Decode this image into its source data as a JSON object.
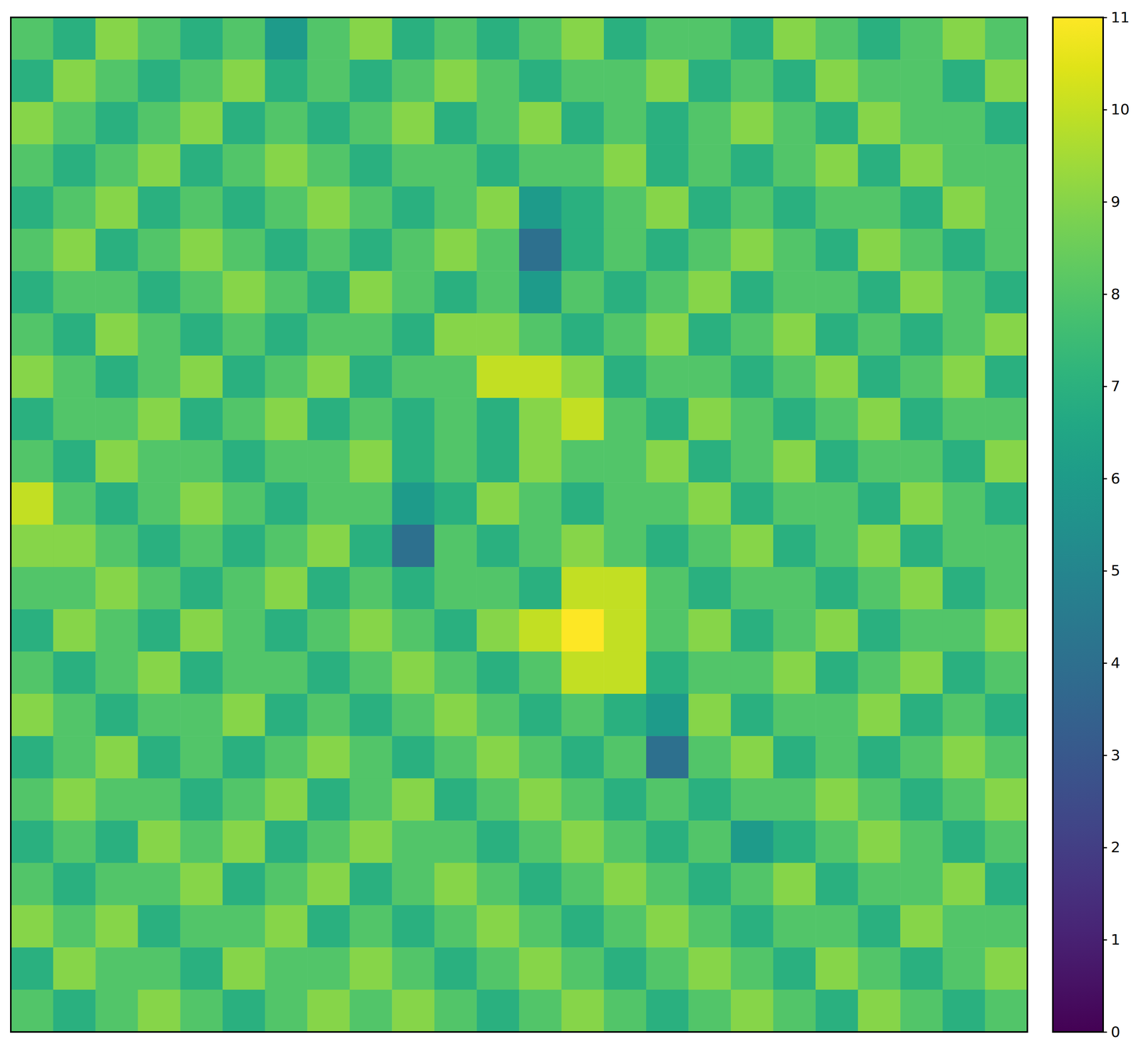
{
  "chart_data": {
    "type": "heatmap",
    "tick_labels": false,
    "z": [
      [
        8,
        7,
        9,
        8,
        7,
        8,
        6,
        8,
        9,
        7,
        8,
        7,
        8,
        9,
        7,
        8,
        8,
        7,
        9,
        8,
        7,
        8,
        9,
        8
      ],
      [
        7,
        9,
        8,
        7,
        8,
        9,
        7,
        8,
        7,
        8,
        9,
        8,
        7,
        8,
        8,
        9,
        7,
        8,
        7,
        9,
        8,
        8,
        7,
        9
      ],
      [
        9,
        8,
        7,
        8,
        9,
        7,
        8,
        7,
        8,
        9,
        7,
        8,
        9,
        7,
        8,
        7,
        8,
        9,
        8,
        7,
        9,
        8,
        8,
        7
      ],
      [
        8,
        7,
        8,
        9,
        7,
        8,
        9,
        8,
        7,
        8,
        8,
        7,
        8,
        8,
        9,
        7,
        8,
        7,
        8,
        9,
        7,
        9,
        8,
        8
      ],
      [
        7,
        8,
        9,
        7,
        8,
        7,
        8,
        9,
        8,
        7,
        8,
        9,
        6,
        7,
        8,
        9,
        7,
        8,
        7,
        8,
        8,
        7,
        9,
        8
      ],
      [
        8,
        9,
        7,
        8,
        9,
        8,
        7,
        8,
        7,
        8,
        9,
        8,
        4,
        7,
        8,
        7,
        8,
        9,
        8,
        7,
        9,
        8,
        7,
        8
      ],
      [
        7,
        8,
        8,
        7,
        8,
        9,
        8,
        7,
        9,
        8,
        7,
        8,
        6,
        8,
        7,
        8,
        9,
        7,
        8,
        8,
        7,
        9,
        8,
        7
      ],
      [
        8,
        7,
        9,
        8,
        7,
        8,
        7,
        8,
        8,
        7,
        9,
        9,
        8,
        7,
        8,
        9,
        7,
        8,
        9,
        7,
        8,
        7,
        8,
        9
      ],
      [
        9,
        8,
        7,
        8,
        9,
        7,
        8,
        9,
        7,
        8,
        8,
        10,
        10,
        9,
        7,
        8,
        8,
        7,
        8,
        9,
        7,
        8,
        9,
        7
      ],
      [
        7,
        8,
        8,
        9,
        7,
        8,
        9,
        7,
        8,
        7,
        8,
        7,
        9,
        10,
        8,
        7,
        9,
        8,
        7,
        8,
        9,
        7,
        8,
        8
      ],
      [
        8,
        7,
        9,
        8,
        8,
        7,
        8,
        8,
        9,
        7,
        8,
        7,
        9,
        8,
        8,
        9,
        7,
        8,
        9,
        7,
        8,
        8,
        7,
        9
      ],
      [
        10,
        8,
        7,
        8,
        9,
        8,
        7,
        8,
        8,
        6,
        7,
        9,
        8,
        7,
        8,
        8,
        9,
        7,
        8,
        8,
        7,
        9,
        8,
        7
      ],
      [
        9,
        9,
        8,
        7,
        8,
        7,
        8,
        9,
        7,
        4,
        8,
        7,
        8,
        9,
        8,
        7,
        8,
        9,
        7,
        8,
        9,
        7,
        8,
        8
      ],
      [
        8,
        8,
        9,
        8,
        7,
        8,
        9,
        7,
        8,
        7,
        8,
        8,
        7,
        10,
        10,
        8,
        7,
        8,
        8,
        7,
        8,
        9,
        7,
        8
      ],
      [
        7,
        9,
        8,
        7,
        9,
        8,
        7,
        8,
        9,
        8,
        7,
        9,
        10,
        11,
        10,
        8,
        9,
        7,
        8,
        9,
        7,
        8,
        8,
        9
      ],
      [
        8,
        7,
        8,
        9,
        7,
        8,
        8,
        7,
        8,
        9,
        8,
        7,
        8,
        10,
        10,
        7,
        8,
        8,
        9,
        7,
        8,
        9,
        7,
        8
      ],
      [
        9,
        8,
        7,
        8,
        8,
        9,
        7,
        8,
        7,
        8,
        9,
        8,
        7,
        8,
        7,
        6,
        9,
        7,
        8,
        8,
        9,
        7,
        8,
        7
      ],
      [
        7,
        8,
        9,
        7,
        8,
        7,
        8,
        9,
        8,
        7,
        8,
        9,
        8,
        7,
        8,
        4,
        8,
        9,
        7,
        8,
        7,
        8,
        9,
        8
      ],
      [
        8,
        9,
        8,
        8,
        7,
        8,
        9,
        7,
        8,
        9,
        7,
        8,
        9,
        8,
        7,
        8,
        7,
        8,
        8,
        9,
        8,
        7,
        8,
        9
      ],
      [
        7,
        8,
        7,
        9,
        8,
        9,
        7,
        8,
        9,
        8,
        8,
        7,
        8,
        9,
        8,
        7,
        8,
        6,
        7,
        8,
        9,
        8,
        7,
        8
      ],
      [
        8,
        7,
        8,
        8,
        9,
        7,
        8,
        9,
        7,
        8,
        9,
        8,
        7,
        8,
        9,
        8,
        7,
        8,
        9,
        7,
        8,
        8,
        9,
        7
      ],
      [
        9,
        8,
        9,
        7,
        8,
        8,
        9,
        7,
        8,
        7,
        8,
        9,
        8,
        7,
        8,
        9,
        8,
        7,
        8,
        8,
        7,
        9,
        8,
        8
      ],
      [
        7,
        9,
        8,
        8,
        7,
        9,
        8,
        8,
        9,
        8,
        7,
        8,
        9,
        8,
        7,
        8,
        9,
        8,
        7,
        9,
        8,
        7,
        8,
        9
      ],
      [
        8,
        7,
        8,
        9,
        8,
        7,
        8,
        9,
        8,
        9,
        8,
        7,
        8,
        9,
        8,
        7,
        8,
        9,
        8,
        7,
        9,
        8,
        7,
        8
      ]
    ],
    "zlim": [
      0,
      11
    ],
    "zticks": [
      0,
      1,
      2,
      3,
      4,
      5,
      6,
      7,
      8,
      9,
      10,
      11
    ]
  }
}
